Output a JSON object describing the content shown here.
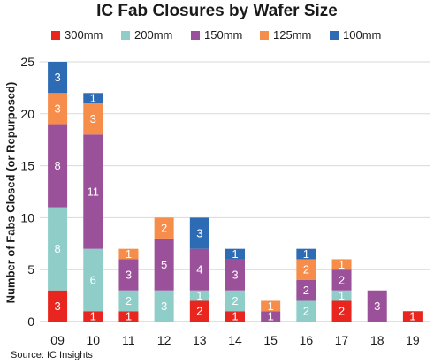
{
  "chart_data": {
    "type": "bar",
    "stacked": true,
    "title": "IC Fab Closures by Wafer Size",
    "xlabel": "",
    "ylabel": "Number of Fabs Closed (or Repurposed)",
    "ylim": [
      0,
      25
    ],
    "yticks": [
      "0",
      "5",
      "10",
      "15",
      "20",
      "25"
    ],
    "grid": true,
    "legend_position": "top",
    "categories": [
      "09",
      "10",
      "11",
      "12",
      "13",
      "14",
      "15",
      "16",
      "17",
      "18",
      "19"
    ],
    "series": [
      {
        "name": "300mm",
        "color": "#e8261f",
        "values": [
          3,
          1,
          1,
          0,
          2,
          1,
          0,
          0,
          2,
          0,
          1
        ]
      },
      {
        "name": "200mm",
        "color": "#8ecdc8",
        "values": [
          8,
          6,
          2,
          3,
          1,
          2,
          0,
          2,
          1,
          0,
          0
        ]
      },
      {
        "name": "150mm",
        "color": "#9b509a",
        "values": [
          8,
          11,
          3,
          5,
          4,
          3,
          1,
          2,
          2,
          3,
          0
        ]
      },
      {
        "name": "125mm",
        "color": "#f68d4a",
        "values": [
          3,
          3,
          1,
          2,
          0,
          0,
          1,
          2,
          1,
          0,
          0
        ]
      },
      {
        "name": "100mm",
        "color": "#2e6bb5",
        "values": [
          3,
          1,
          0,
          0,
          3,
          1,
          0,
          1,
          0,
          0,
          0
        ]
      }
    ]
  },
  "source": "Source:  IC Insights"
}
